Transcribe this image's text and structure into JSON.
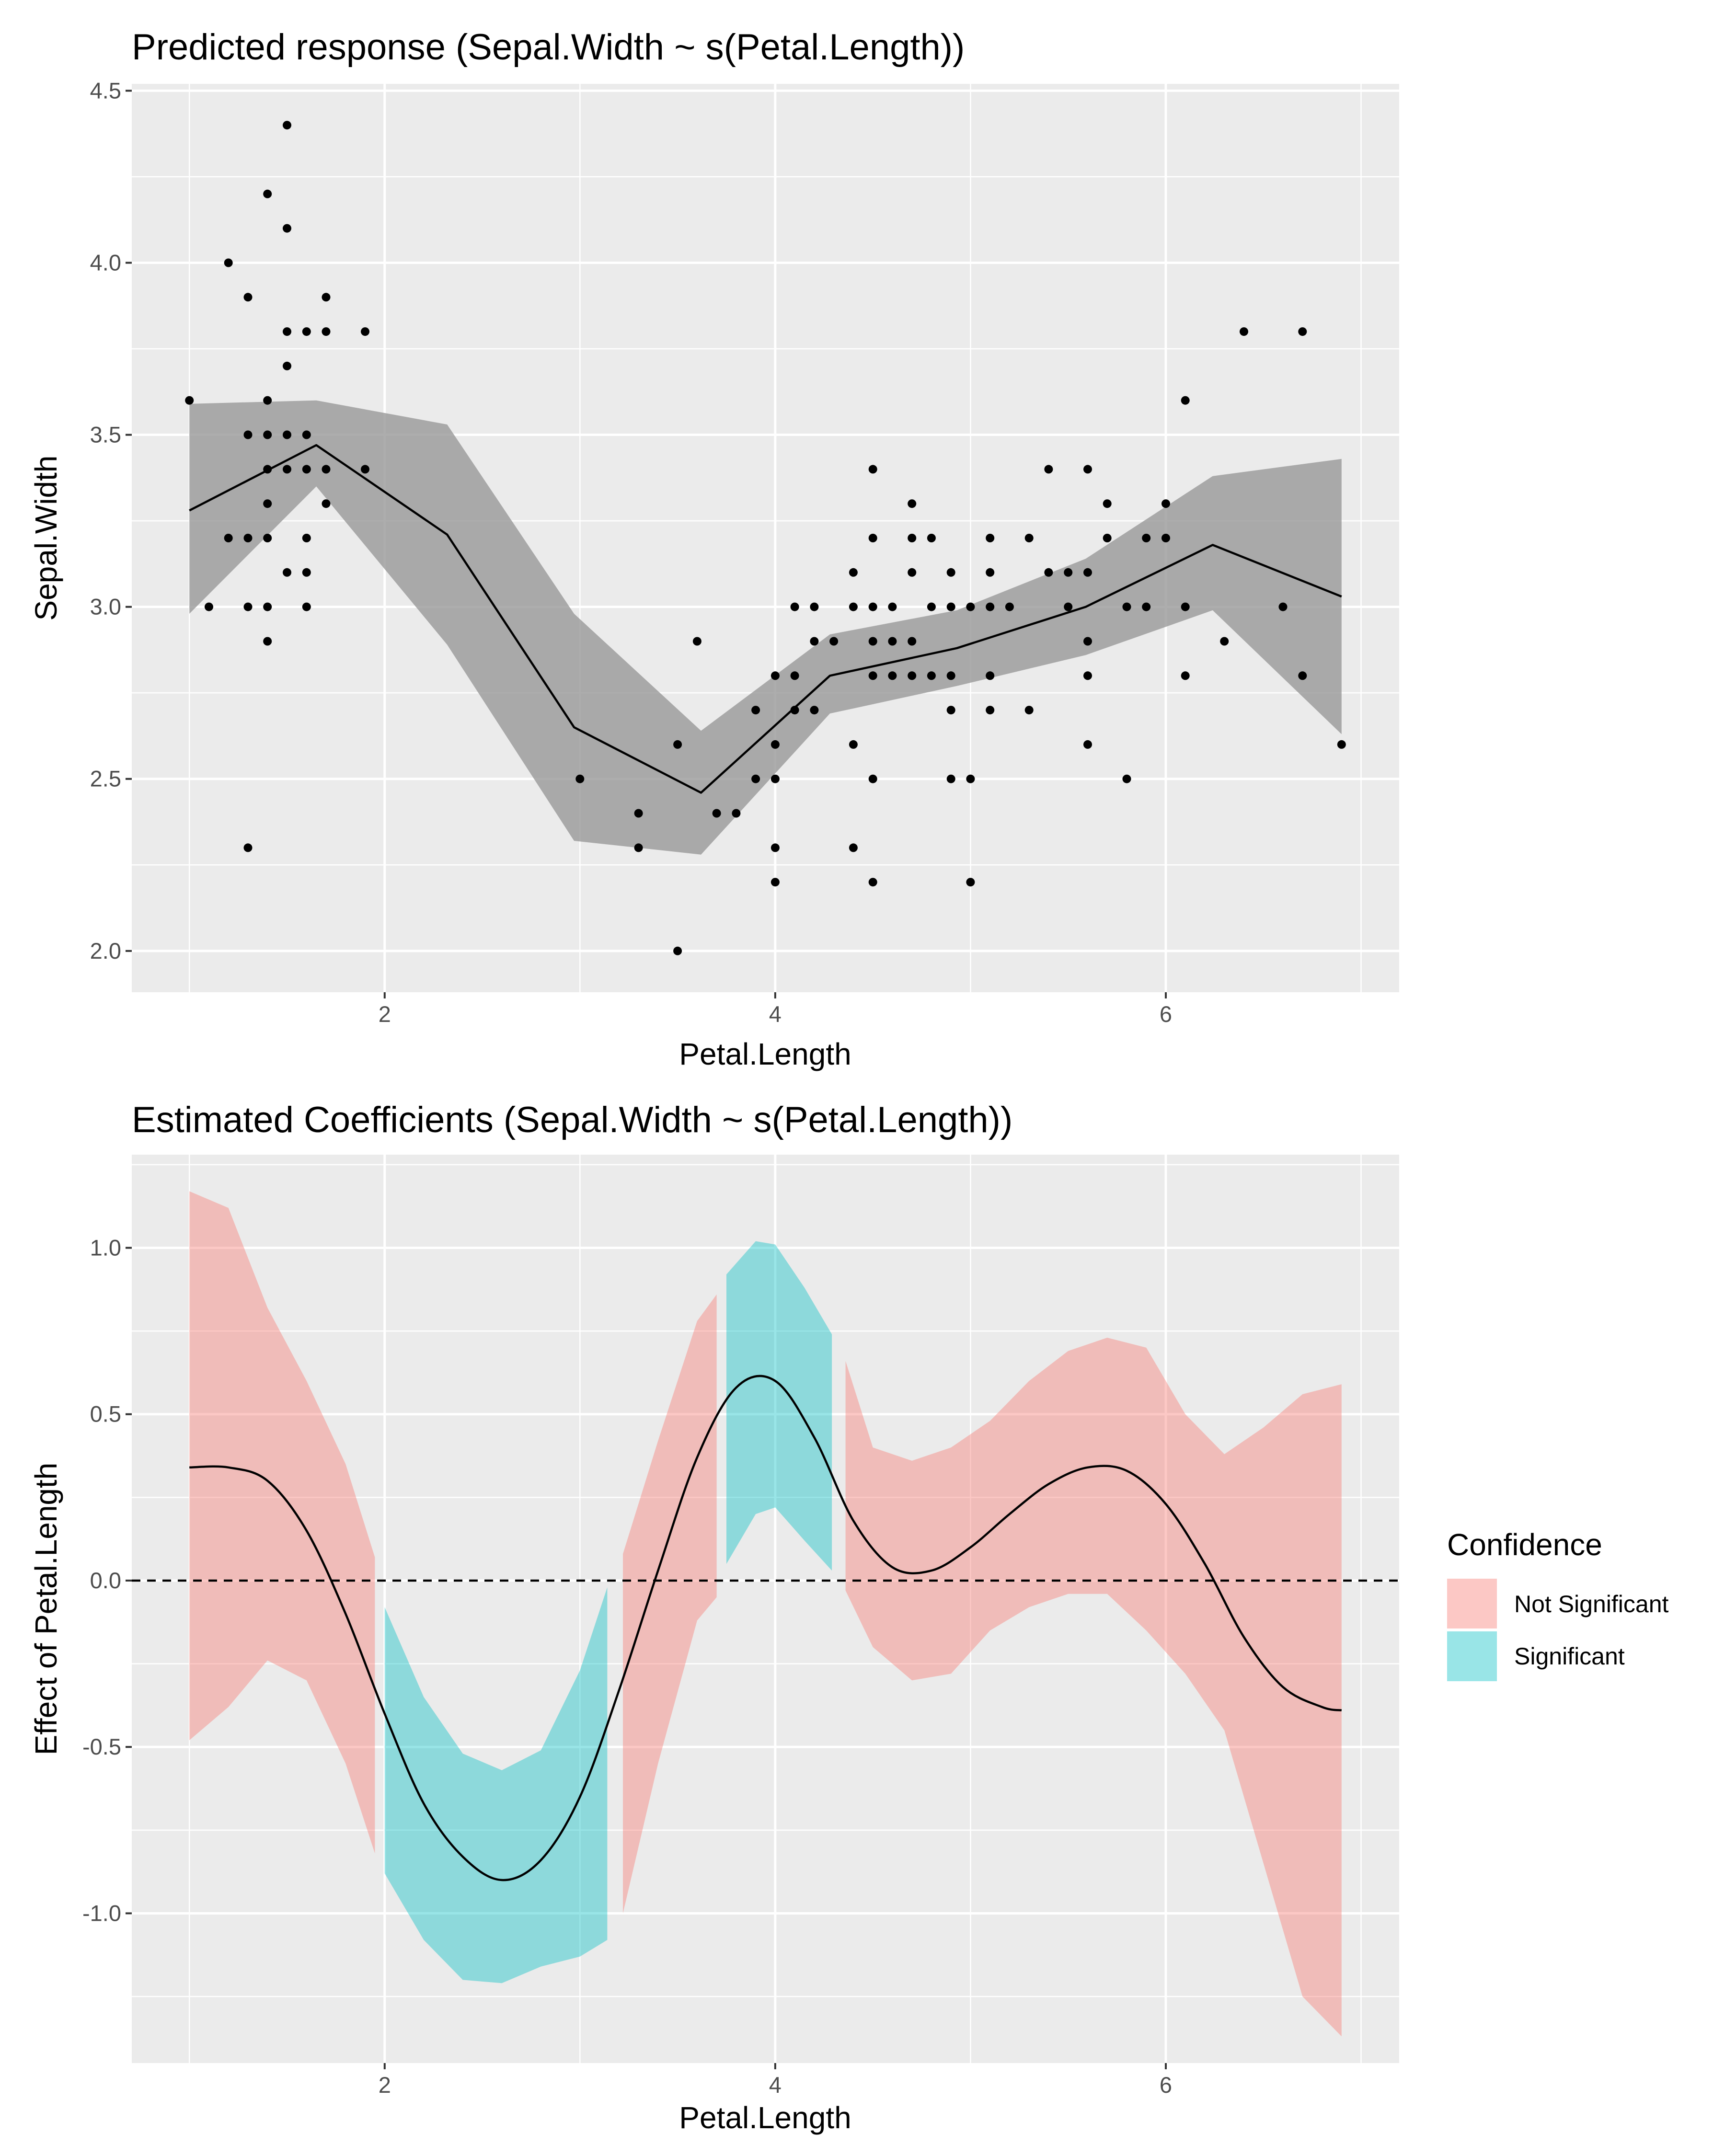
{
  "chart_data": [
    {
      "type": "scatter",
      "title": "Predicted response (Sepal.Width ~ s(Petal.Length))",
      "xlabel": "Petal.Length",
      "ylabel": "Sepal.Width",
      "xlim": [
        0.705,
        7.195
      ],
      "ylim": [
        1.88,
        4.52
      ],
      "xticks": [
        {
          "v": 2,
          "label": "2"
        },
        {
          "v": 4,
          "label": "4"
        },
        {
          "v": 6,
          "label": "6"
        }
      ],
      "yticks": [
        {
          "v": 2.0,
          "label": "2.0"
        },
        {
          "v": 2.5,
          "label": "2.5"
        },
        {
          "v": 3.0,
          "label": "3.0"
        },
        {
          "v": 3.5,
          "label": "3.5"
        },
        {
          "v": 4.0,
          "label": "4.0"
        },
        {
          "v": 4.5,
          "label": "4.5"
        }
      ],
      "grid": true,
      "colors": {
        "panel": "#ebebeb",
        "grid": "#ffffff",
        "ribbon": "#999999",
        "line": "#000000",
        "points": "#000000"
      },
      "points": [
        [
          1.0,
          3.6
        ],
        [
          1.1,
          3.0
        ],
        [
          1.2,
          4.0
        ],
        [
          1.2,
          3.2
        ],
        [
          1.3,
          3.9
        ],
        [
          1.3,
          3.5
        ],
        [
          1.3,
          3.2
        ],
        [
          1.3,
          3.0
        ],
        [
          1.3,
          2.3
        ],
        [
          1.4,
          4.2
        ],
        [
          1.4,
          3.6
        ],
        [
          1.4,
          3.5
        ],
        [
          1.4,
          3.4
        ],
        [
          1.4,
          3.3
        ],
        [
          1.4,
          3.2
        ],
        [
          1.4,
          3.0
        ],
        [
          1.4,
          2.9
        ],
        [
          1.5,
          4.4
        ],
        [
          1.5,
          4.1
        ],
        [
          1.5,
          3.8
        ],
        [
          1.5,
          3.7
        ],
        [
          1.5,
          3.5
        ],
        [
          1.5,
          3.4
        ],
        [
          1.5,
          3.1
        ],
        [
          1.6,
          3.8
        ],
        [
          1.6,
          3.5
        ],
        [
          1.6,
          3.4
        ],
        [
          1.6,
          3.2
        ],
        [
          1.6,
          3.1
        ],
        [
          1.6,
          3.0
        ],
        [
          1.7,
          3.9
        ],
        [
          1.7,
          3.8
        ],
        [
          1.7,
          3.4
        ],
        [
          1.7,
          3.3
        ],
        [
          1.9,
          3.8
        ],
        [
          1.9,
          3.4
        ],
        [
          3.0,
          2.5
        ],
        [
          3.3,
          2.4
        ],
        [
          3.3,
          2.3
        ],
        [
          3.5,
          2.6
        ],
        [
          3.5,
          2.0
        ],
        [
          3.6,
          2.9
        ],
        [
          3.7,
          2.4
        ],
        [
          3.8,
          2.4
        ],
        [
          3.9,
          2.7
        ],
        [
          3.9,
          2.5
        ],
        [
          4.0,
          2.8
        ],
        [
          4.0,
          2.6
        ],
        [
          4.0,
          2.5
        ],
        [
          4.0,
          2.3
        ],
        [
          4.0,
          2.2
        ],
        [
          4.1,
          3.0
        ],
        [
          4.1,
          2.8
        ],
        [
          4.1,
          2.7
        ],
        [
          4.2,
          3.0
        ],
        [
          4.2,
          2.9
        ],
        [
          4.2,
          2.7
        ],
        [
          4.3,
          2.9
        ],
        [
          4.4,
          3.1
        ],
        [
          4.4,
          3.0
        ],
        [
          4.4,
          2.6
        ],
        [
          4.4,
          2.3
        ],
        [
          4.5,
          3.4
        ],
        [
          4.5,
          3.2
        ],
        [
          4.5,
          3.0
        ],
        [
          4.5,
          2.9
        ],
        [
          4.5,
          2.8
        ],
        [
          4.5,
          2.5
        ],
        [
          4.5,
          2.2
        ],
        [
          4.6,
          3.0
        ],
        [
          4.6,
          2.9
        ],
        [
          4.6,
          2.8
        ],
        [
          4.7,
          3.3
        ],
        [
          4.7,
          3.2
        ],
        [
          4.7,
          3.1
        ],
        [
          4.7,
          2.9
        ],
        [
          4.7,
          2.8
        ],
        [
          4.8,
          3.2
        ],
        [
          4.8,
          3.0
        ],
        [
          4.8,
          2.8
        ],
        [
          4.9,
          3.1
        ],
        [
          4.9,
          3.0
        ],
        [
          4.9,
          2.8
        ],
        [
          4.9,
          2.7
        ],
        [
          4.9,
          2.5
        ],
        [
          5.0,
          3.0
        ],
        [
          5.0,
          2.5
        ],
        [
          5.0,
          2.2
        ],
        [
          5.1,
          3.2
        ],
        [
          5.1,
          3.1
        ],
        [
          5.1,
          3.0
        ],
        [
          5.1,
          2.8
        ],
        [
          5.1,
          2.7
        ],
        [
          5.2,
          3.0
        ],
        [
          5.3,
          3.2
        ],
        [
          5.3,
          2.7
        ],
        [
          5.4,
          3.4
        ],
        [
          5.4,
          3.1
        ],
        [
          5.5,
          3.1
        ],
        [
          5.5,
          3.0
        ],
        [
          5.6,
          3.4
        ],
        [
          5.6,
          3.1
        ],
        [
          5.6,
          2.9
        ],
        [
          5.6,
          2.8
        ],
        [
          5.6,
          2.6
        ],
        [
          5.7,
          3.3
        ],
        [
          5.7,
          3.2
        ],
        [
          5.8,
          3.0
        ],
        [
          5.8,
          2.5
        ],
        [
          5.9,
          3.2
        ],
        [
          5.9,
          3.0
        ],
        [
          6.0,
          3.3
        ],
        [
          6.0,
          3.2
        ],
        [
          6.1,
          3.6
        ],
        [
          6.1,
          3.0
        ],
        [
          6.1,
          2.8
        ],
        [
          6.3,
          2.9
        ],
        [
          6.4,
          3.8
        ],
        [
          6.6,
          3.0
        ],
        [
          6.7,
          3.8
        ],
        [
          6.7,
          2.8
        ],
        [
          6.9,
          2.6
        ]
      ],
      "fit": {
        "x": [
          1.0,
          1.65,
          2.32,
          2.97,
          3.62,
          4.28,
          4.93,
          5.59,
          6.24,
          6.9
        ],
        "y": [
          3.28,
          3.47,
          3.21,
          2.65,
          2.46,
          2.8,
          2.88,
          3.0,
          3.18,
          3.03
        ],
        "lower": [
          2.98,
          3.35,
          2.89,
          2.32,
          2.28,
          2.69,
          2.77,
          2.86,
          2.99,
          2.63
        ],
        "upper": [
          3.59,
          3.6,
          3.53,
          2.98,
          2.64,
          2.92,
          2.99,
          3.14,
          3.38,
          3.43
        ]
      }
    },
    {
      "type": "line",
      "title": "Estimated Coefficients (Sepal.Width ~ s(Petal.Length))",
      "xlabel": "Petal.Length",
      "ylabel": "Effect of Petal.Length",
      "xlim": [
        0.705,
        7.195
      ],
      "ylim": [
        -1.45,
        1.28
      ],
      "xticks": [
        {
          "v": 2,
          "label": "2"
        },
        {
          "v": 4,
          "label": "4"
        },
        {
          "v": 6,
          "label": "6"
        }
      ],
      "yticks": [
        {
          "v": -1.0,
          "label": "-1.0"
        },
        {
          "v": -0.5,
          "label": "-0.5"
        },
        {
          "v": 0.0,
          "label": "0.0"
        },
        {
          "v": 0.5,
          "label": "0.5"
        },
        {
          "v": 1.0,
          "label": "1.0"
        }
      ],
      "grid": true,
      "zero_line": 0,
      "colors": {
        "panel": "#ebebeb",
        "grid": "#ffffff",
        "not_significant": "#f8766d",
        "significant": "#00bfc4",
        "line": "#000000"
      },
      "legend": {
        "title": "Confidence",
        "position": "right",
        "entries": [
          {
            "label": "Not Significant",
            "color": "#f8766d"
          },
          {
            "label": "Significant",
            "color": "#00bfc4"
          }
        ]
      },
      "estimate": {
        "x": [
          1.0,
          1.2,
          1.4,
          1.6,
          1.8,
          2.0,
          2.2,
          2.4,
          2.6,
          2.8,
          3.0,
          3.2,
          3.4,
          3.6,
          3.8,
          4.0,
          4.2,
          4.4,
          4.6,
          4.8,
          5.0,
          5.2,
          5.4,
          5.6,
          5.8,
          6.0,
          6.2,
          6.4,
          6.6,
          6.8,
          6.9
        ],
        "y": [
          0.34,
          0.34,
          0.3,
          0.15,
          -0.1,
          -0.4,
          -0.67,
          -0.83,
          -0.9,
          -0.84,
          -0.65,
          -0.33,
          0.03,
          0.37,
          0.58,
          0.6,
          0.43,
          0.18,
          0.04,
          0.03,
          0.1,
          0.2,
          0.29,
          0.34,
          0.33,
          0.23,
          0.05,
          -0.17,
          -0.32,
          -0.38,
          -0.39
        ]
      },
      "bands": [
        {
          "significance": "Not Significant",
          "x": [
            1.0,
            1.2,
            1.4,
            1.6,
            1.8,
            1.95
          ],
          "lower": [
            -0.48,
            -0.38,
            -0.24,
            -0.3,
            -0.55,
            -0.82
          ],
          "upper": [
            1.17,
            1.12,
            0.82,
            0.6,
            0.35,
            0.07
          ]
        },
        {
          "significance": "Significant",
          "x": [
            2.0,
            2.2,
            2.4,
            2.6,
            2.8,
            3.0,
            3.14
          ],
          "lower": [
            -0.88,
            -1.08,
            -1.2,
            -1.21,
            -1.16,
            -1.13,
            -1.08
          ],
          "upper": [
            -0.08,
            -0.35,
            -0.52,
            -0.57,
            -0.51,
            -0.27,
            -0.02
          ]
        },
        {
          "significance": "Not Significant",
          "x": [
            3.22,
            3.4,
            3.6,
            3.7
          ],
          "lower": [
            -1.0,
            -0.55,
            -0.12,
            -0.05
          ],
          "upper": [
            0.08,
            0.42,
            0.78,
            0.86
          ]
        },
        {
          "significance": "Significant",
          "x": [
            3.75,
            3.9,
            4.0,
            4.15,
            4.29
          ],
          "lower": [
            0.05,
            0.2,
            0.22,
            0.12,
            0.03
          ],
          "upper": [
            0.92,
            1.02,
            1.01,
            0.88,
            0.74
          ]
        },
        {
          "significance": "Not Significant",
          "x": [
            4.36,
            4.5,
            4.7,
            4.9,
            5.1,
            5.3,
            5.5,
            5.7,
            5.9,
            6.1,
            6.3,
            6.5,
            6.7,
            6.9
          ],
          "lower": [
            -0.03,
            -0.2,
            -0.3,
            -0.28,
            -0.15,
            -0.08,
            -0.04,
            -0.04,
            -0.15,
            -0.28,
            -0.45,
            -0.85,
            -1.25,
            -1.37
          ],
          "upper": [
            0.66,
            0.4,
            0.36,
            0.4,
            0.48,
            0.6,
            0.69,
            0.73,
            0.7,
            0.5,
            0.38,
            0.46,
            0.56,
            0.59
          ]
        }
      ]
    }
  ]
}
